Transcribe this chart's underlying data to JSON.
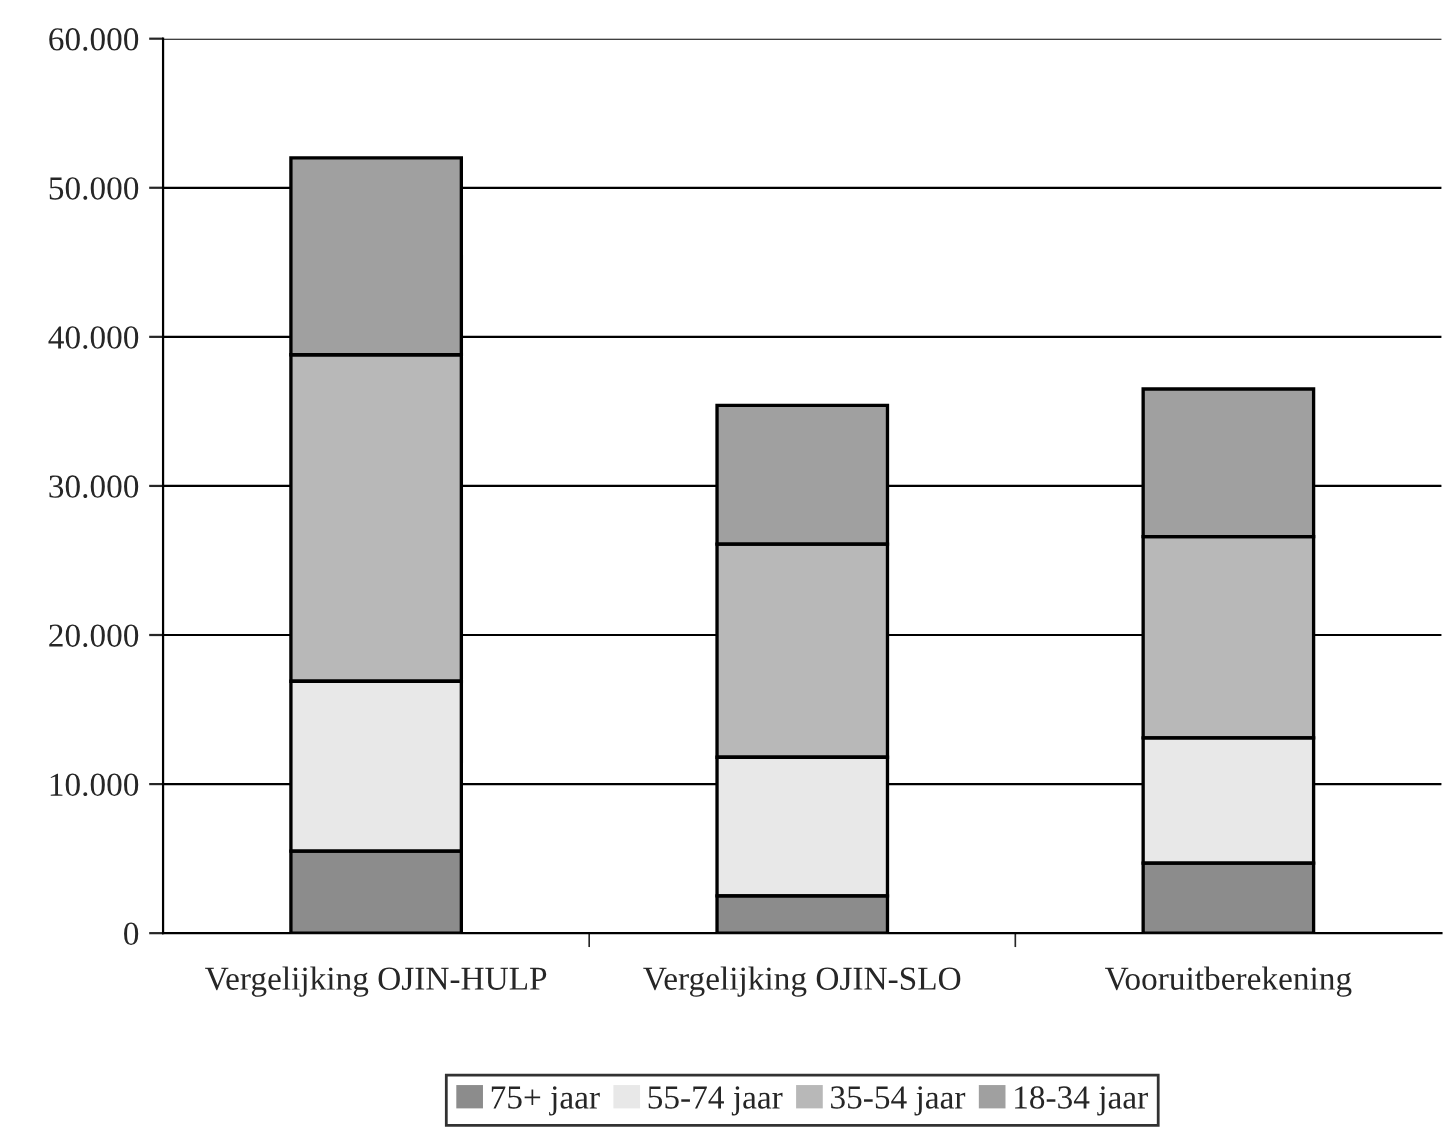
{
  "chart_data": {
    "type": "bar",
    "stacked": true,
    "categories": [
      "Vergelijking OJIN-HULP",
      "Vergelijking OJIN-SLO",
      "Vooruitberekening"
    ],
    "series": [
      {
        "name": "75+ jaar",
        "color": "#8c8c8c",
        "values": [
          5500,
          2500,
          4700
        ]
      },
      {
        "name": "55-74 jaar",
        "color": "#e8e8e8",
        "values": [
          11400,
          9300,
          8400
        ]
      },
      {
        "name": "35-54 jaar",
        "color": "#b8b8b8",
        "values": [
          21900,
          14300,
          13500
        ]
      },
      {
        "name": "18-34 jaar",
        "color": "#a0a0a0",
        "values": [
          13200,
          9300,
          9900
        ]
      }
    ],
    "ylim": [
      0,
      60000
    ],
    "yticks": [
      {
        "value": 0,
        "label": "0"
      },
      {
        "value": 10000,
        "label": "10.000"
      },
      {
        "value": 20000,
        "label": "20.000"
      },
      {
        "value": 30000,
        "label": "30.000"
      },
      {
        "value": 40000,
        "label": "40.000"
      },
      {
        "value": 50000,
        "label": "50.000"
      },
      {
        "value": 60000,
        "label": "60.000"
      }
    ],
    "grid": "y",
    "legend": "bottom"
  }
}
